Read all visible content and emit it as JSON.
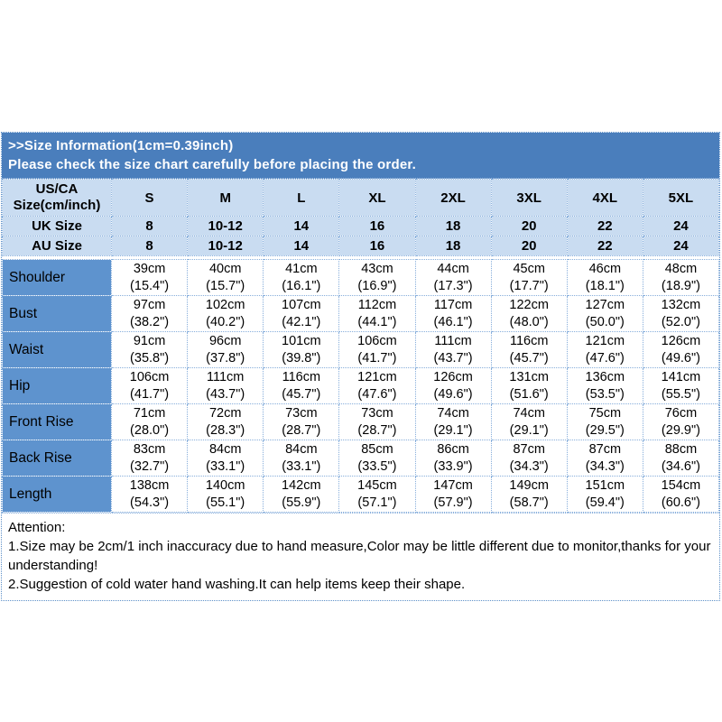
{
  "colors": {
    "banner_blue": "#4a7ebc",
    "row_label_blue": "#5e93ce",
    "header_light_blue": "#c9dcf1",
    "grid_dotted_blue": "#87aedb",
    "banner_text": "#ffffff",
    "body_text": "#000000"
  },
  "chart_data": {
    "type": "table",
    "title": ">>Size Information(1cm=0.39inch)",
    "subtitle": "Please check the size chart carefully before placing the order.",
    "corner_header": [
      "US/CA",
      "Size(cm/inch)"
    ],
    "size_columns": [
      "S",
      "M",
      "L",
      "XL",
      "2XL",
      "3XL",
      "4XL",
      "5XL"
    ],
    "size_rows": [
      {
        "label": "UK Size",
        "values": [
          "8",
          "10-12",
          "14",
          "16",
          "18",
          "20",
          "22",
          "24"
        ]
      },
      {
        "label": "AU Size",
        "values": [
          "8",
          "10-12",
          "14",
          "16",
          "18",
          "20",
          "22",
          "24"
        ]
      }
    ],
    "measurement_rows": [
      {
        "label": "Shoulder",
        "cm": [
          "39cm",
          "40cm",
          "41cm",
          "43cm",
          "44cm",
          "45cm",
          "46cm",
          "48cm"
        ],
        "inch": [
          "(15.4\")",
          "(15.7\")",
          "(16.1\")",
          "(16.9\")",
          "(17.3\")",
          "(17.7\")",
          "(18.1\")",
          "(18.9\")"
        ]
      },
      {
        "label": "Bust",
        "cm": [
          "97cm",
          "102cm",
          "107cm",
          "112cm",
          "117cm",
          "122cm",
          "127cm",
          "132cm"
        ],
        "inch": [
          "(38.2\")",
          "(40.2\")",
          "(42.1\")",
          "(44.1\")",
          "(46.1\")",
          "(48.0\")",
          "(50.0\")",
          "(52.0\")"
        ]
      },
      {
        "label": "Waist",
        "cm": [
          "91cm",
          "96cm",
          "101cm",
          "106cm",
          "111cm",
          "116cm",
          "121cm",
          "126cm"
        ],
        "inch": [
          "(35.8\")",
          "(37.8\")",
          "(39.8\")",
          "(41.7\")",
          "(43.7\")",
          "(45.7\")",
          "(47.6\")",
          "(49.6\")"
        ]
      },
      {
        "label": "Hip",
        "cm": [
          "106cm",
          "111cm",
          "116cm",
          "121cm",
          "126cm",
          "131cm",
          "136cm",
          "141cm"
        ],
        "inch": [
          "(41.7\")",
          "(43.7\")",
          "(45.7\")",
          "(47.6\")",
          "(49.6\")",
          "(51.6\")",
          "(53.5\")",
          "(55.5\")"
        ]
      },
      {
        "label": "Front Rise",
        "cm": [
          "71cm",
          "72cm",
          "73cm",
          "73cm",
          "74cm",
          "74cm",
          "75cm",
          "76cm"
        ],
        "inch": [
          "(28.0\")",
          "(28.3\")",
          "(28.7\")",
          "(28.7\")",
          "(29.1\")",
          "(29.1\")",
          "(29.5\")",
          "(29.9\")"
        ]
      },
      {
        "label": "Back Rise",
        "cm": [
          "83cm",
          "84cm",
          "84cm",
          "85cm",
          "86cm",
          "87cm",
          "87cm",
          "88cm"
        ],
        "inch": [
          "(32.7\")",
          "(33.1\")",
          "(33.1\")",
          "(33.5\")",
          "(33.9\")",
          "(34.3\")",
          "(34.3\")",
          "(34.6\")"
        ]
      },
      {
        "label": "Length",
        "cm": [
          "138cm",
          "140cm",
          "142cm",
          "145cm",
          "147cm",
          "149cm",
          "151cm",
          "154cm"
        ],
        "inch": [
          "(54.3\")",
          "(55.1\")",
          "(55.9\")",
          "(57.1\")",
          "(57.9\")",
          "(58.7\")",
          "(59.4\")",
          "(60.6\")"
        ]
      }
    ],
    "notes": [
      "Attention:",
      "1.Size may be 2cm/1 inch inaccuracy due to hand measure,Color may be little different due to monitor,thanks for your understanding!",
      "2.Suggestion of cold water hand washing.It can help items keep their shape."
    ]
  }
}
